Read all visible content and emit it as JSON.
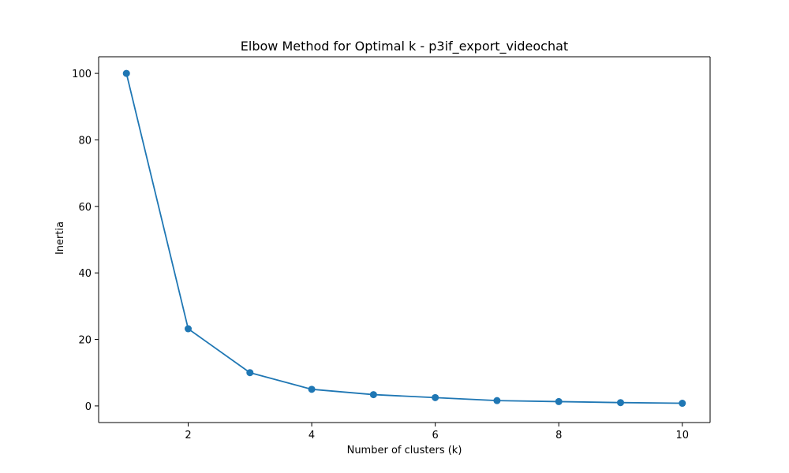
{
  "chart_data": {
    "type": "line",
    "title": "Elbow Method for Optimal k - p3if_export_videochat",
    "xlabel": "Number of clusters (k)",
    "ylabel": "Inertia",
    "x": [
      1,
      2,
      3,
      4,
      5,
      6,
      7,
      8,
      9,
      10
    ],
    "series": [
      {
        "values": [
          100.0,
          23.2,
          10.0,
          5.0,
          3.4,
          2.5,
          1.6,
          1.3,
          1.0,
          0.8
        ],
        "color": "#1f77b4",
        "marker": "circle"
      }
    ],
    "xlim": [
      0.55,
      10.45
    ],
    "ylim": [
      -5.0,
      105.0
    ],
    "xticks": [
      2,
      4,
      6,
      8,
      10
    ],
    "yticks": [
      0,
      20,
      40,
      60,
      80,
      100
    ],
    "grid": false
  }
}
